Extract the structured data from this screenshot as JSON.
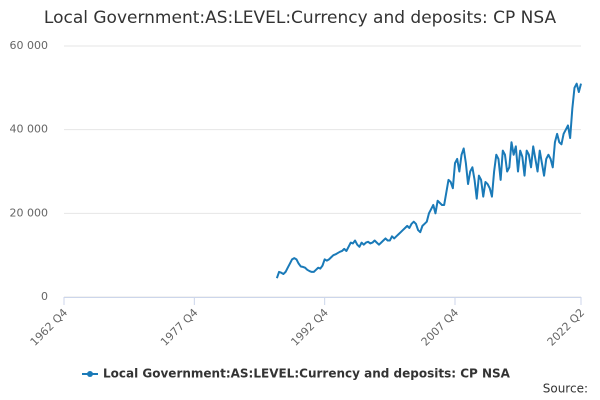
{
  "chart_data": {
    "type": "line",
    "title": "Local Government:AS:LEVEL:Currency and deposits: CP NSA",
    "source_label": "Source:",
    "categories": [
      "1962 Q4",
      null,
      null,
      null,
      null,
      null,
      null,
      null,
      null,
      null,
      null,
      null,
      null,
      null,
      null,
      null,
      null,
      null,
      null,
      null,
      null,
      null,
      null,
      null,
      null,
      null,
      null,
      null,
      null,
      null,
      null,
      null,
      null,
      null,
      null,
      null,
      null,
      null,
      null,
      null,
      null,
      null,
      null,
      null,
      null,
      null,
      null,
      null,
      null,
      null,
      null,
      null,
      null,
      null,
      null,
      null,
      null,
      null,
      null,
      null,
      "1977 Q4",
      null,
      null,
      null,
      null,
      null,
      null,
      null,
      null,
      null,
      null,
      null,
      null,
      null,
      null,
      null,
      null,
      null,
      null,
      null,
      null,
      null,
      null,
      null,
      null,
      null,
      null,
      null,
      null,
      null,
      null,
      null,
      null,
      null,
      null,
      null,
      null,
      null,
      null,
      null,
      null,
      null,
      null,
      null,
      null,
      null,
      null,
      null,
      null,
      null,
      null,
      null,
      null,
      null,
      null,
      null,
      null,
      null,
      null,
      null,
      "1992 Q4",
      null,
      null,
      null,
      null,
      null,
      null,
      null,
      null,
      null,
      null,
      null,
      null,
      null,
      null,
      null,
      null,
      null,
      null,
      null,
      null,
      null,
      null,
      null,
      null,
      null,
      null,
      null,
      null,
      null,
      null,
      null,
      null,
      null,
      null,
      null,
      null,
      null,
      null,
      null,
      null,
      null,
      null,
      null,
      null,
      null,
      null,
      null,
      null,
      null,
      null,
      null,
      null,
      null,
      null,
      null,
      null,
      null,
      null,
      null,
      "2007 Q4",
      null,
      null,
      null,
      null,
      null,
      null,
      null,
      null,
      null,
      null,
      null,
      null,
      null,
      null,
      null,
      null,
      null,
      null,
      null,
      null,
      null,
      null,
      null,
      null,
      null,
      null,
      null,
      null,
      null,
      null,
      null,
      null,
      null,
      null,
      null,
      null,
      null,
      null,
      null,
      null,
      null,
      null,
      null,
      null,
      null,
      null,
      null,
      null,
      null,
      null,
      null,
      null,
      null,
      null,
      null,
      null,
      null,
      "2022 Q2"
    ],
    "series": [
      {
        "name": "Local Government:AS:LEVEL:Currency and deposits: CP NSA",
        "color": "#1a7ab8",
        "values": [
          null,
          null,
          null,
          null,
          null,
          null,
          null,
          null,
          null,
          null,
          null,
          null,
          null,
          null,
          null,
          null,
          null,
          null,
          null,
          null,
          null,
          null,
          null,
          null,
          null,
          null,
          null,
          null,
          null,
          null,
          null,
          null,
          null,
          null,
          null,
          null,
          null,
          null,
          null,
          null,
          null,
          null,
          null,
          null,
          null,
          null,
          null,
          null,
          null,
          null,
          null,
          null,
          null,
          null,
          null,
          null,
          null,
          null,
          null,
          null,
          null,
          null,
          null,
          null,
          null,
          null,
          null,
          null,
          null,
          null,
          null,
          null,
          null,
          null,
          null,
          null,
          null,
          null,
          null,
          null,
          null,
          null,
          null,
          null,
          null,
          null,
          null,
          null,
          null,
          null,
          null,
          null,
          null,
          null,
          null,
          null,
          null,
          null,
          4500,
          6000,
          5800,
          5500,
          6000,
          7000,
          8000,
          9000,
          9300,
          9000,
          8000,
          7300,
          7200,
          7000,
          6500,
          6200,
          6000,
          6000,
          6500,
          7000,
          6800,
          7500,
          9000,
          8700,
          9000,
          9500,
          10000,
          10200,
          10500,
          10800,
          11000,
          11500,
          11000,
          12000,
          13000,
          12800,
          13500,
          12500,
          12000,
          13000,
          12500,
          13000,
          13200,
          12800,
          13000,
          13500,
          13000,
          12500,
          13000,
          13500,
          14000,
          13500,
          13500,
          14500,
          14000,
          14500,
          15000,
          15500,
          16000,
          16500,
          17000,
          16500,
          17500,
          18000,
          17500,
          16000,
          15500,
          17000,
          17500,
          18000,
          20000,
          21000,
          22000,
          20000,
          23000,
          22500,
          22000,
          22000,
          25000,
          28000,
          27500,
          26000,
          32000,
          33000,
          30000,
          34000,
          35500,
          32000,
          27000,
          30000,
          31000,
          28000,
          23500,
          29000,
          28000,
          24000,
          27500,
          27000,
          26000,
          24000,
          30000,
          34000,
          33000,
          28000,
          35000,
          34000,
          30000,
          31000,
          37000,
          34000,
          36000,
          30000,
          35000,
          33500,
          29000,
          35000,
          34000,
          31000,
          36000,
          33000,
          30000,
          35000,
          32000,
          29000,
          33000,
          34000,
          33000,
          31000,
          37000,
          39000,
          37000,
          36500,
          39000,
          40000,
          41000,
          38000,
          45000,
          50000,
          51000,
          49000,
          51000
        ]
      }
    ],
    "ylim": [
      0,
      60000
    ],
    "yticks": [
      0,
      {
        "value": 20000,
        "label": "20 000"
      },
      {
        "value": 40000,
        "label": "40 000"
      },
      {
        "value": 60000,
        "label": "60 000"
      }
    ],
    "grid": true
  }
}
